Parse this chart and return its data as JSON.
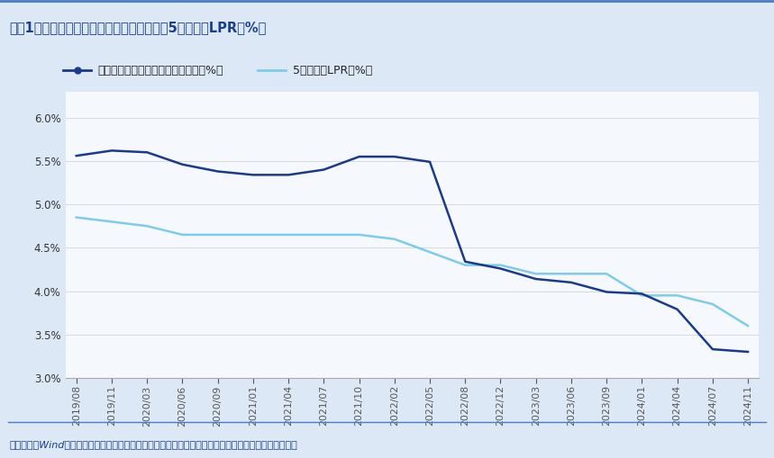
{
  "title": "图表1：新发放个人住房贷款加权平均利率与5年期以上LPR（%）",
  "footer": "资料来源：Wind，央行，国盛证券研究所（个人住房贷款加权平均利率来自央行季度货币政策执行报告）",
  "legend1": "新发放个人住房贷款加权平均利率（%）",
  "legend2": "5年期以上LPR（%）",
  "bg_color": "#dce8f5",
  "plot_bg_color": "#f5f9fd",
  "title_color": "#1a3d8c",
  "footer_color": "#1a3d8c",
  "line1_color": "#1b3a8c",
  "line2_color": "#7eccea",
  "border_color": "#4a7cc7",
  "ylim": [
    3.0,
    6.3
  ],
  "yticks": [
    3.0,
    3.5,
    4.0,
    4.5,
    5.0,
    5.5,
    6.0
  ],
  "xtick_labels": [
    "2019/08",
    "2019/11",
    "2020/03",
    "2020/06",
    "2020/09",
    "2021/01",
    "2021/04",
    "2021/07",
    "2021/10",
    "2022/02",
    "2022/05",
    "2022/08",
    "2022/12",
    "2023/03",
    "2023/06",
    "2023/09",
    "2024/01",
    "2024/04",
    "2024/07",
    "2024/11"
  ],
  "series1_y": [
    5.56,
    5.62,
    5.6,
    5.46,
    5.38,
    5.34,
    5.34,
    5.4,
    5.55,
    5.55,
    5.49,
    4.34,
    4.26,
    4.14,
    4.1,
    3.99,
    3.97,
    3.79,
    3.33,
    3.3
  ],
  "series2_y": [
    4.85,
    4.8,
    4.75,
    4.65,
    4.65,
    4.65,
    4.65,
    4.65,
    4.65,
    4.6,
    4.45,
    4.3,
    4.3,
    4.2,
    4.2,
    4.2,
    3.95,
    3.95,
    3.85,
    3.6
  ]
}
